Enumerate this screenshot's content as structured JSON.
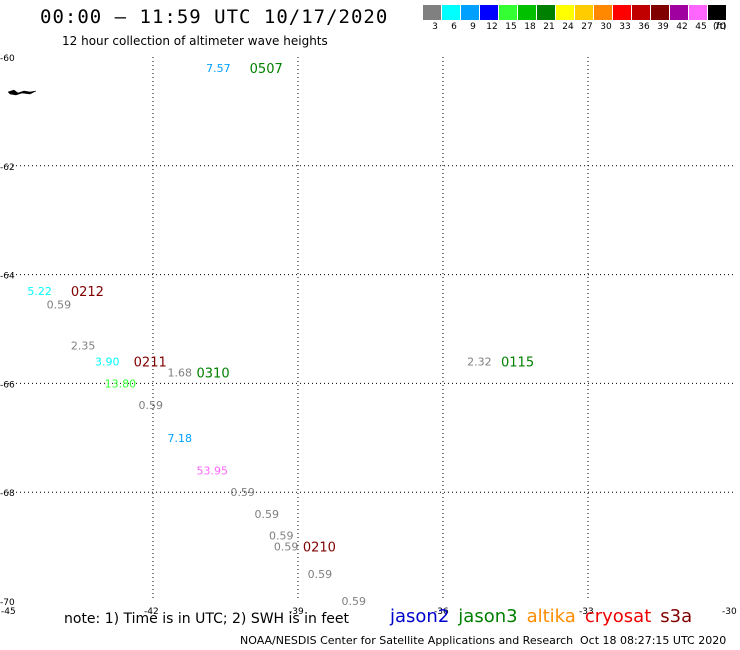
{
  "header": {
    "title": "00:00 – 11:59 UTC 10/17/2020",
    "subtitle": "12 hour collection of altimeter wave heights"
  },
  "scale": {
    "unit": "(ft)",
    "bins": [
      {
        "label": "3",
        "color": "#808080"
      },
      {
        "label": "6",
        "color": "#00ffff"
      },
      {
        "label": "9",
        "color": "#00a0ff"
      },
      {
        "label": "12",
        "color": "#0000ff"
      },
      {
        "label": "15",
        "color": "#33ff33"
      },
      {
        "label": "18",
        "color": "#00c000"
      },
      {
        "label": "21",
        "color": "#008000"
      },
      {
        "label": "24",
        "color": "#ffff00"
      },
      {
        "label": "27",
        "color": "#ffcc00"
      },
      {
        "label": "30",
        "color": "#ff8800"
      },
      {
        "label": "33",
        "color": "#ff0000"
      },
      {
        "label": "36",
        "color": "#c00000"
      },
      {
        "label": "39",
        "color": "#800000"
      },
      {
        "label": "42",
        "color": "#a000a0"
      },
      {
        "label": "45",
        "color": "#ff66ff"
      },
      {
        "label": "70",
        "color": "#000000"
      }
    ]
  },
  "chart_data": {
    "type": "scatter",
    "title": "00:00 – 11:59 UTC 10/17/2020",
    "xlim": [
      -45,
      -30
    ],
    "ylim": [
      -70,
      -60
    ],
    "x_ticks": [
      {
        "value": -45,
        "label": "-45"
      },
      {
        "value": -42,
        "label": "-42"
      },
      {
        "value": -39,
        "label": "-39"
      },
      {
        "value": -36,
        "label": "-36"
      },
      {
        "value": -33,
        "label": "-33"
      },
      {
        "value": -30,
        "label": "-30"
      }
    ],
    "y_ticks": [
      {
        "value": -60,
        "label": "-60"
      },
      {
        "value": -62,
        "label": "-62"
      },
      {
        "value": -64,
        "label": "-64"
      },
      {
        "value": -66,
        "label": "-66"
      },
      {
        "value": -68,
        "label": "-68"
      },
      {
        "value": -70,
        "label": "-70"
      }
    ],
    "grid": true,
    "wave_heights": [
      {
        "lon": -40.9,
        "lat": -60.2,
        "value": "7.57",
        "color": "#00a0ff"
      },
      {
        "lon": -44.6,
        "lat": -64.3,
        "value": "5.22",
        "color": "#00ffff"
      },
      {
        "lon": -44.2,
        "lat": -64.55,
        "value": "0.59",
        "color": "#808080"
      },
      {
        "lon": -43.7,
        "lat": -65.3,
        "value": "2.35",
        "color": "#808080"
      },
      {
        "lon": -43.2,
        "lat": -65.6,
        "value": "3.90",
        "color": "#00ffff"
      },
      {
        "lon": -41.7,
        "lat": -65.8,
        "value": "1.68",
        "color": "#808080"
      },
      {
        "lon": -43.0,
        "lat": -66.0,
        "value": "13.80",
        "color": "#33ff33"
      },
      {
        "lon": -42.3,
        "lat": -66.4,
        "value": "0.59",
        "color": "#808080"
      },
      {
        "lon": -41.7,
        "lat": -67.0,
        "value": "7.18",
        "color": "#00a0ff"
      },
      {
        "lon": -41.1,
        "lat": -67.6,
        "value": "53.95",
        "color": "#ff66ff"
      },
      {
        "lon": -40.4,
        "lat": -68.0,
        "value": "0.59",
        "color": "#808080"
      },
      {
        "lon": -39.9,
        "lat": -68.4,
        "value": "0.59",
        "color": "#808080"
      },
      {
        "lon": -39.6,
        "lat": -68.8,
        "value": "0.59",
        "color": "#808080"
      },
      {
        "lon": -39.5,
        "lat": -69.0,
        "value": "0.59",
        "color": "#808080"
      },
      {
        "lon": -38.8,
        "lat": -69.5,
        "value": "0.59",
        "color": "#808080"
      },
      {
        "lon": -38.1,
        "lat": -70.0,
        "value": "0.59",
        "color": "#808080"
      },
      {
        "lon": -35.5,
        "lat": -65.6,
        "value": "2.32",
        "color": "#808080"
      }
    ],
    "pass_times": [
      {
        "lon": -40.0,
        "lat": -60.2,
        "label": "0507",
        "color": "#008000"
      },
      {
        "lon": -43.7,
        "lat": -64.3,
        "label": "0212",
        "color": "#800000"
      },
      {
        "lon": -42.4,
        "lat": -65.6,
        "label": "0211",
        "color": "#800000"
      },
      {
        "lon": -41.1,
        "lat": -65.8,
        "label": "0310",
        "color": "#008000"
      },
      {
        "lon": -38.9,
        "lat": -69.0,
        "label": "0210",
        "color": "#800000"
      },
      {
        "lon": -34.8,
        "lat": -65.6,
        "label": "0115",
        "color": "#008000"
      }
    ]
  },
  "footer": {
    "note": "note: 1) Time is in UTC; 2) SWH is in feet",
    "satellites": [
      {
        "name": "jason2",
        "color": "#0000cc"
      },
      {
        "name": "jason3",
        "color": "#008000"
      },
      {
        "name": "altika",
        "color": "#ff8c00"
      },
      {
        "name": "cryosat",
        "color": "#ee0000"
      },
      {
        "name": "s3a",
        "color": "#800000"
      }
    ],
    "credit": "NOAA/NESDIS Center for Satellite Applications and Research",
    "timestamp": "Oct 18 08:27:15 UTC 2020"
  }
}
